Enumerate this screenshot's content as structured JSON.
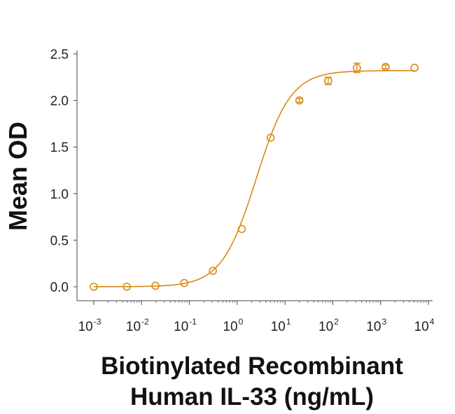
{
  "chart_data": {
    "type": "scatter",
    "title": "",
    "xlabel_lines": [
      "Biotinylated Recombinant",
      "Human IL-33 (ng/mL)"
    ],
    "ylabel": "Mean OD",
    "x_scale": "log",
    "xlim": [
      0.001,
      10000
    ],
    "ylim": [
      0.0,
      2.5
    ],
    "x_ticks": [
      {
        "base": "10",
        "exp": "-3",
        "value": 0.001
      },
      {
        "base": "10",
        "exp": "-2",
        "value": 0.01
      },
      {
        "base": "10",
        "exp": "-1",
        "value": 0.1
      },
      {
        "base": "10",
        "exp": "0",
        "value": 1
      },
      {
        "base": "10",
        "exp": "1",
        "value": 10
      },
      {
        "base": "10",
        "exp": "2",
        "value": 100
      },
      {
        "base": "10",
        "exp": "3",
        "value": 1000
      },
      {
        "base": "10",
        "exp": "4",
        "value": 10000
      }
    ],
    "y_ticks": [
      {
        "label": "0.0",
        "value": 0.0
      },
      {
        "label": "0.5",
        "value": 0.5
      },
      {
        "label": "1.0",
        "value": 1.0
      },
      {
        "label": "1.5",
        "value": 1.5
      },
      {
        "label": "2.0",
        "value": 2.0
      },
      {
        "label": "2.5",
        "value": 2.5
      }
    ],
    "series": [
      {
        "name": "Mean OD",
        "color": "#D98A14",
        "points": [
          {
            "x": 0.001,
            "y": 0.0,
            "err": 0.0
          },
          {
            "x": 0.0049,
            "y": 0.0,
            "err": 0.0
          },
          {
            "x": 0.0195,
            "y": 0.01,
            "err": 0.0
          },
          {
            "x": 0.078,
            "y": 0.04,
            "err": 0.0
          },
          {
            "x": 0.31,
            "y": 0.17,
            "err": 0.0
          },
          {
            "x": 1.25,
            "y": 0.62,
            "err": 0.0
          },
          {
            "x": 5.0,
            "y": 1.6,
            "err": 0.0
          },
          {
            "x": 20,
            "y": 2.0,
            "err": 0.02
          },
          {
            "x": 80,
            "y": 2.21,
            "err": 0.04
          },
          {
            "x": 320,
            "y": 2.35,
            "err": 0.05
          },
          {
            "x": 1280,
            "y": 2.36,
            "err": 0.02
          },
          {
            "x": 5120,
            "y": 2.35,
            "err": 0.0
          }
        ]
      }
    ],
    "fit": {
      "type": "4PL",
      "bottom": 0.0,
      "top": 2.32,
      "ec50": 2.5,
      "hill": 1.2
    },
    "grid": false
  }
}
